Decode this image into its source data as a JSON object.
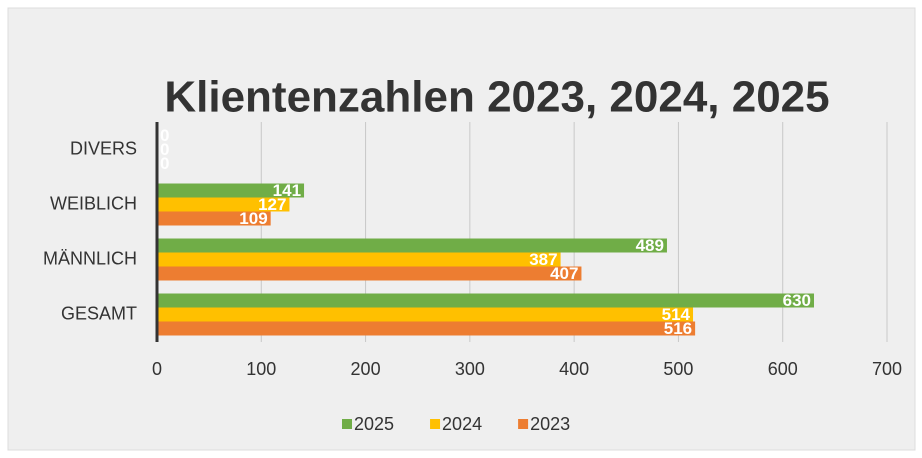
{
  "chart_data": {
    "type": "hbar",
    "title": "Klientenzahlen 2023, 2024, 2025",
    "categories": [
      "DIVERS",
      "WEIBLICH",
      "MÄNNLICH",
      "GESAMT"
    ],
    "series": [
      {
        "name": "2025",
        "color": "#70ad47",
        "values": [
          0,
          141,
          489,
          630
        ]
      },
      {
        "name": "2024",
        "color": "#ffc000",
        "values": [
          0,
          127,
          387,
          514
        ]
      },
      {
        "name": "2023",
        "color": "#ed7d31",
        "values": [
          0,
          109,
          407,
          516
        ]
      }
    ],
    "xlim": [
      0,
      700
    ],
    "xticks": [
      0,
      100,
      200,
      300,
      400,
      500,
      600,
      700
    ],
    "grid": true,
    "legend": "bottom"
  }
}
